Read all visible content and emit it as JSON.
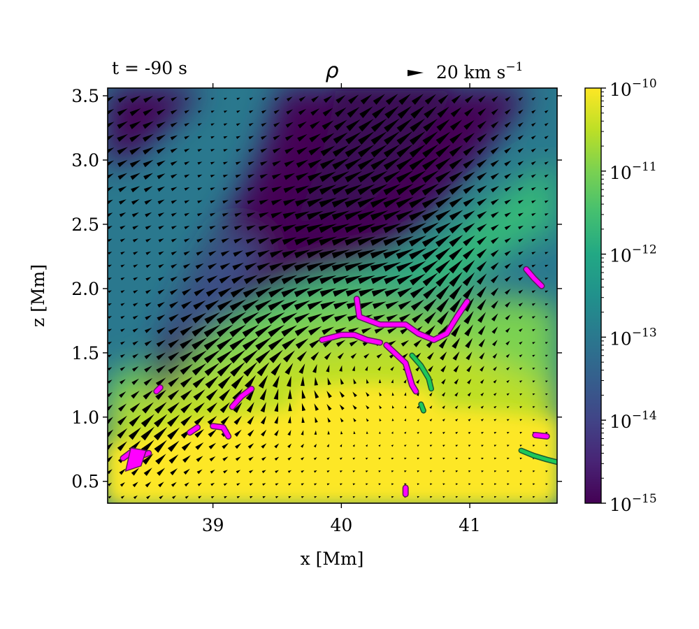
{
  "chart_data": {
    "type": "heatmap",
    "title": "ρ",
    "annotations": {
      "time": "t = -90 s",
      "quiver_key": "20 km s",
      "quiver_key_exp": "−1"
    },
    "xlabel": "x [Mm]",
    "ylabel": "z [Mm]",
    "xlim": [
      38.18,
      41.68
    ],
    "ylim": [
      0.33,
      3.56
    ],
    "xticks": [
      39,
      40,
      41
    ],
    "xtick_labels": [
      "39",
      "40",
      "41"
    ],
    "yticks": [
      0.5,
      1.0,
      1.5,
      2.0,
      2.5,
      3.0,
      3.5
    ],
    "ytick_labels": [
      "0.5",
      "1.0",
      "1.5",
      "2.0",
      "2.5",
      "3.0",
      "3.5"
    ],
    "colorbar": {
      "colormap": "viridis",
      "scale": "log",
      "range": [
        1e-15,
        1e-10
      ],
      "tick_base": "10",
      "tick_exponents": [
        "−10",
        "−11",
        "−12",
        "−13",
        "−14",
        "−15"
      ]
    },
    "velocity_field": "black quiver arrows",
    "magenta_contours": [
      [
        [
          38.3,
          0.68
        ],
        [
          38.38,
          0.74
        ],
        [
          38.45,
          0.7
        ],
        [
          38.5,
          0.72
        ]
      ],
      [
        [
          40.12,
          1.92
        ],
        [
          40.14,
          1.78
        ],
        [
          40.3,
          1.72
        ],
        [
          40.5,
          1.72
        ],
        [
          40.6,
          1.65
        ],
        [
          40.72,
          1.6
        ],
        [
          40.82,
          1.65
        ],
        [
          40.9,
          1.78
        ],
        [
          40.98,
          1.9
        ]
      ],
      [
        [
          39.85,
          1.6
        ],
        [
          40.0,
          1.64
        ],
        [
          40.1,
          1.64
        ],
        [
          40.2,
          1.6
        ],
        [
          40.3,
          1.58
        ]
      ],
      [
        [
          40.35,
          1.56
        ],
        [
          40.5,
          1.42
        ],
        [
          40.55,
          1.25
        ],
        [
          40.58,
          1.2
        ]
      ],
      [
        [
          39.15,
          1.08
        ],
        [
          39.22,
          1.16
        ],
        [
          39.3,
          1.22
        ]
      ],
      [
        [
          39.0,
          0.93
        ],
        [
          39.08,
          0.92
        ],
        [
          39.12,
          0.85
        ]
      ],
      [
        [
          38.82,
          0.88
        ],
        [
          38.88,
          0.92
        ]
      ],
      [
        [
          38.56,
          1.2
        ],
        [
          38.59,
          1.23
        ]
      ],
      [
        [
          41.44,
          2.15
        ],
        [
          41.5,
          2.08
        ],
        [
          41.56,
          2.02
        ]
      ],
      [
        [
          40.5,
          0.45
        ],
        [
          40.5,
          0.4
        ]
      ],
      [
        [
          41.51,
          0.86
        ],
        [
          41.6,
          0.85
        ]
      ]
    ],
    "green_contours": [
      [
        [
          40.55,
          1.48
        ],
        [
          40.62,
          1.4
        ],
        [
          40.68,
          1.3
        ],
        [
          40.7,
          1.22
        ]
      ],
      [
        [
          41.4,
          0.74
        ],
        [
          41.5,
          0.7
        ],
        [
          41.6,
          0.67
        ],
        [
          41.68,
          0.65
        ]
      ],
      [
        [
          40.62,
          1.1
        ],
        [
          40.64,
          1.05
        ]
      ]
    ],
    "colors": {
      "magenta": "#ff00ff",
      "green": "#1ec85a",
      "arrow": "#000000"
    }
  }
}
